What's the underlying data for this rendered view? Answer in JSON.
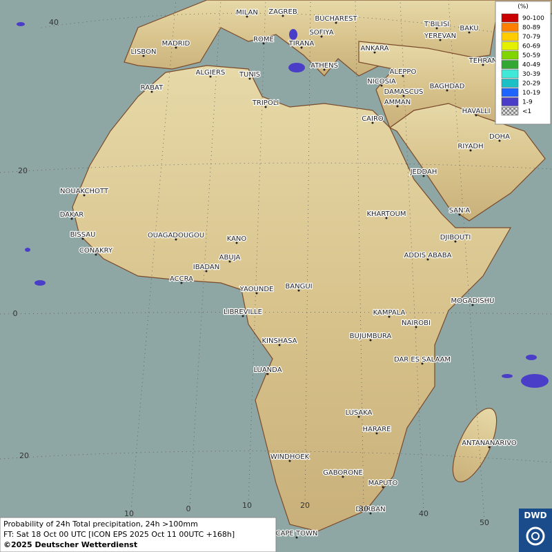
{
  "legend": {
    "title": "(%)",
    "entries": [
      {
        "label": "90-100",
        "color": "#c80000"
      },
      {
        "label": "80-89",
        "color": "#ff7f00"
      },
      {
        "label": "70-79",
        "color": "#ffcc00"
      },
      {
        "label": "60-69",
        "color": "#e5f000"
      },
      {
        "label": "50-59",
        "color": "#80d400"
      },
      {
        "label": "40-49",
        "color": "#32a832"
      },
      {
        "label": "30-39",
        "color": "#40e8d8"
      },
      {
        "label": "20-29",
        "color": "#1ec0c8"
      },
      {
        "label": "10-19",
        "color": "#1e64ff"
      },
      {
        "label": "1-9",
        "color": "#4a3ec8"
      },
      {
        "label": "<1",
        "color": "checkered"
      }
    ]
  },
  "cities": [
    "MILAN",
    "ZAGREB",
    "BUCHAREST",
    "MADRID",
    "ROME",
    "SOFIYA",
    "TIRANA",
    "LISBON",
    "ALGIERS",
    "TUNIS",
    "ATHENS",
    "ANKARA",
    "T'BILISI",
    "YEREVAN",
    "BAKU",
    "TEHRAN",
    "RABAT",
    "NICOSIA",
    "ALEPPO",
    "BAGHDAD",
    "DAMASCUS",
    "TRIPOLI",
    "AMMAN",
    "HAVALLI",
    "CAIRO",
    "DOHA",
    "RIYADH",
    "JEDDAH",
    "NOUAKCHOTT",
    "DAKAR",
    "KHARTOUM",
    "SAN'A",
    "BISSAU",
    "OUAGADOUGOU",
    "KANO",
    "DJIBOUTI",
    "CONAKRY",
    "ABUJA",
    "ADDIS ABABA",
    "IBADAN",
    "ACCRA",
    "YAOUNDE",
    "BANGUI",
    "MOGADISHU",
    "LIBREVILLE",
    "KAMPALA",
    "NAIROBI",
    "KINSHASA",
    "BUJUMBURA",
    "DAR ES SALAAM",
    "LUANDA",
    "LUSAKA",
    "ANTANANARIVO",
    "HARARE",
    "WINDHOEK",
    "GABORONE",
    "MAPUTO",
    "DURBAN",
    "CAPE TOWN"
  ],
  "lat_labels": [
    "40",
    "20",
    "0",
    "20"
  ],
  "lon_labels": [
    "10",
    "0",
    "10",
    "20",
    "30",
    "40",
    "50"
  ],
  "caption": {
    "line1": "Probability of 24h Total precipitation, 24h >100mm",
    "line2": "FT: Sat 18 Oct 00 UTC [ICON EPS 2025 Oct 11 00UTC +168h]",
    "copyright": "©2025 Deutscher Wetterdienst"
  },
  "logo": "DWD"
}
